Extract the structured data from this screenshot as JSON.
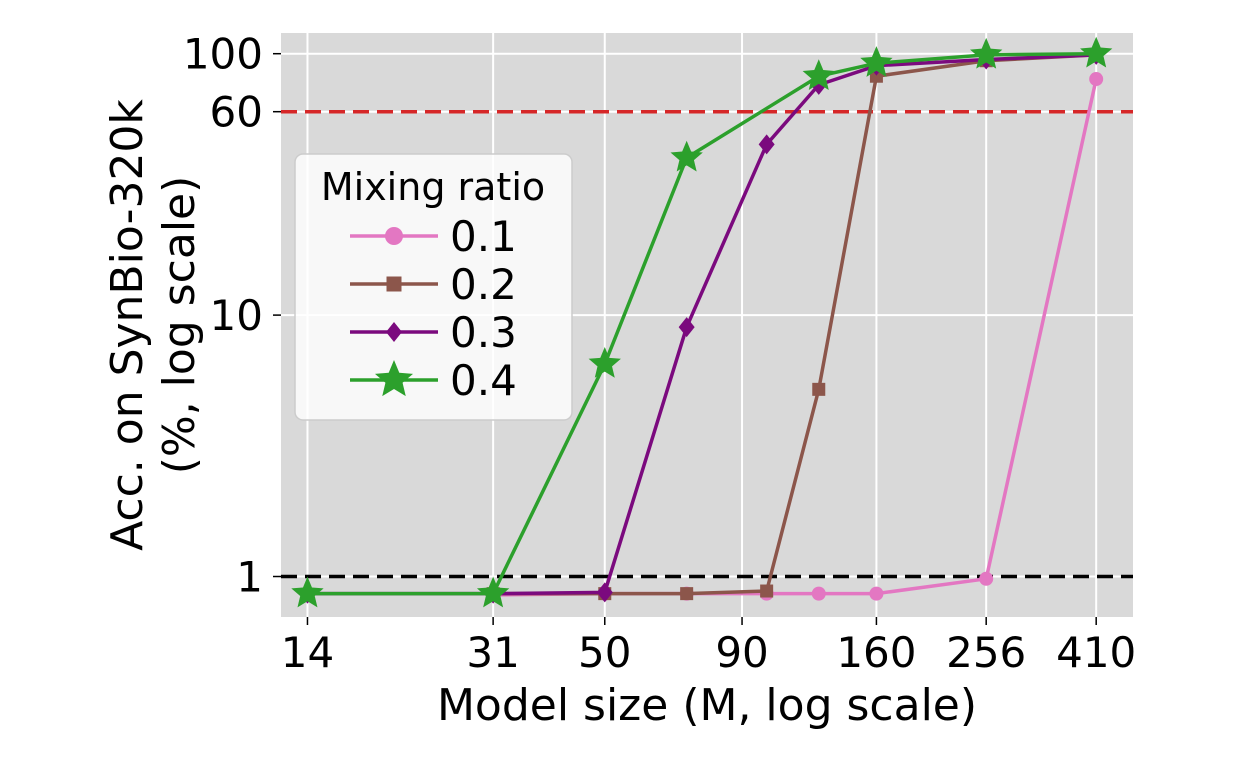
{
  "chart_data": {
    "type": "line",
    "title": "",
    "xlabel": "Model size (M, log scale)",
    "ylabel_line1": "Acc. on SynBio-320k",
    "ylabel_line2": "(%, log scale)",
    "x_scale": "log",
    "y_scale": "log",
    "xlim": [
      12.5,
      480
    ],
    "ylim": [
      0.7,
      120
    ],
    "x_ticks": [
      14,
      31,
      50,
      90,
      160,
      256,
      410
    ],
    "x_tick_labels": [
      "14",
      "31",
      "50",
      "90",
      "160",
      "256",
      "410"
    ],
    "y_ticks": [
      1,
      10,
      60,
      100
    ],
    "y_tick_labels": [
      "1",
      "10",
      "60",
      "100"
    ],
    "grid": true,
    "background": "#d9d9d9",
    "reference_lines": [
      {
        "y": 60,
        "color": "#d62728",
        "style": "dashed"
      },
      {
        "y": 1,
        "color": "#000000",
        "style": "dashed"
      }
    ],
    "legend": {
      "title": "Mixing ratio",
      "placement": "center-left"
    },
    "series": [
      {
        "name": "0.1",
        "color": "#e377c2",
        "marker": "circle",
        "x": [
          31,
          50,
          71,
          100,
          125,
          160,
          256,
          410
        ],
        "y": [
          0.85,
          0.86,
          0.86,
          0.86,
          0.86,
          0.86,
          0.98,
          80
        ]
      },
      {
        "name": "0.2",
        "color": "#8c564b",
        "marker": "square",
        "x": [
          31,
          50,
          71,
          100,
          125,
          160,
          256,
          410
        ],
        "y": [
          0.86,
          0.86,
          0.86,
          0.88,
          5.2,
          82,
          94,
          99
        ]
      },
      {
        "name": "0.3",
        "color": "#7b0a7e",
        "marker": "diamond",
        "x": [
          14,
          31,
          50,
          71,
          100,
          125,
          160,
          256,
          410
        ],
        "y": [
          0.86,
          0.86,
          0.87,
          9.0,
          45,
          76,
          90,
          95,
          99
        ]
      },
      {
        "name": "0.4",
        "color": "#2ca02c",
        "marker": "star",
        "x": [
          14,
          31,
          50,
          71,
          125,
          160,
          256,
          410
        ],
        "y": [
          0.86,
          0.86,
          6.5,
          40,
          82,
          92,
          99,
          100
        ]
      }
    ]
  }
}
